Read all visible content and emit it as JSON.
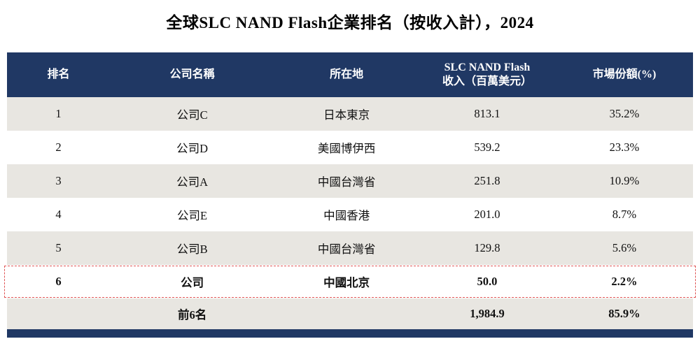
{
  "page_title": "全球SLC NAND Flash企業排名（按收入計），2024",
  "colors": {
    "header_bg": "#203864",
    "row_alt_bg": "#e8e6e1",
    "highlight_border": "#e05555"
  },
  "table": {
    "headers": {
      "rank": "排名",
      "company": "公司名稱",
      "location": "所在地",
      "revenue_line1": "SLC NAND Flash",
      "revenue_line2": "收入（百萬美元）",
      "share": "市場份額(%)"
    },
    "rows": [
      {
        "rank": "1",
        "company": "公司C",
        "location": "日本東京",
        "revenue": "813.1",
        "share": "35.2%"
      },
      {
        "rank": "2",
        "company": "公司D",
        "location": "美國博伊西",
        "revenue": "539.2",
        "share": "23.3%"
      },
      {
        "rank": "3",
        "company": "公司A",
        "location": "中國台灣省",
        "revenue": "251.8",
        "share": "10.9%"
      },
      {
        "rank": "4",
        "company": "公司E",
        "location": "中國香港",
        "revenue": "201.0",
        "share": "8.7%"
      },
      {
        "rank": "5",
        "company": "公司B",
        "location": "中國台灣省",
        "revenue": "129.8",
        "share": "5.6%"
      },
      {
        "rank": "6",
        "company": "公司",
        "location": "中國北京",
        "revenue": "50.0",
        "share": "2.2%"
      }
    ],
    "footer": {
      "label": "前6名",
      "revenue": "1,984.9",
      "share": "85.9%"
    }
  },
  "chart_data": {
    "type": "table",
    "title": "全球SLC NAND Flash企業排名（按收入計），2024",
    "columns": [
      "排名",
      "公司名稱",
      "所在地",
      "SLC NAND Flash收入（百萬美元）",
      "市場份額(%)"
    ],
    "rows": [
      [
        "1",
        "公司C",
        "日本東京",
        813.1,
        "35.2%"
      ],
      [
        "2",
        "公司D",
        "美國博伊西",
        539.2,
        "23.3%"
      ],
      [
        "3",
        "公司A",
        "中國台灣省",
        251.8,
        "10.9%"
      ],
      [
        "4",
        "公司E",
        "中國香港",
        201.0,
        "8.7%"
      ],
      [
        "5",
        "公司B",
        "中國台灣省",
        129.8,
        "5.6%"
      ],
      [
        "6",
        "公司",
        "中國北京",
        50.0,
        "2.2%"
      ]
    ],
    "footer_row": [
      "",
      "前6名",
      "",
      1984.9,
      "85.9%"
    ],
    "highlighted_row_index": 5,
    "notes": "Row 6 is emphasized with a red dashed border; header and bottom bar are dark navy."
  }
}
